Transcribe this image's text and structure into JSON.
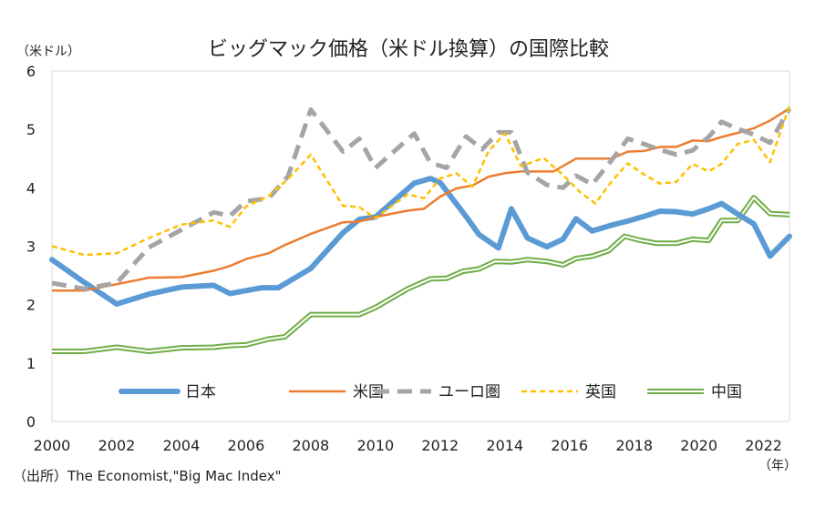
{
  "chart_data": {
    "type": "line",
    "title": "ビッグマック価格（米ドル換算）の国際比較",
    "ylabel": "（米ドル）",
    "xlabel": "（年）",
    "source": "（出所）The Economist,\"Big Mac Index\"",
    "ylim": [
      0,
      6
    ],
    "xlim": [
      2000,
      2022.8
    ],
    "yticks": [
      "0",
      "1",
      "2",
      "3",
      "4",
      "5",
      "6"
    ],
    "xticks": [
      "2000",
      "2002",
      "2004",
      "2006",
      "2008",
      "2010",
      "2012",
      "2014",
      "2016",
      "2018",
      "2020",
      "2022"
    ],
    "series": [
      {
        "name": "日本",
        "color": "#5B9BD5",
        "style": "thick",
        "points": [
          [
            2000,
            2.77
          ],
          [
            2001,
            2.38
          ],
          [
            2002,
            2.01
          ],
          [
            2003,
            2.18
          ],
          [
            2004,
            2.3
          ],
          [
            2005,
            2.33
          ],
          [
            2005.5,
            2.19
          ],
          [
            2006.5,
            2.29
          ],
          [
            2007,
            2.29
          ],
          [
            2008,
            2.62
          ],
          [
            2009,
            3.23
          ],
          [
            2009.5,
            3.46
          ],
          [
            2010,
            3.5
          ],
          [
            2011.2,
            4.08
          ],
          [
            2011.7,
            4.16
          ],
          [
            2012,
            4.09
          ],
          [
            2012.8,
            3.51
          ],
          [
            2013.2,
            3.2
          ],
          [
            2013.8,
            2.97
          ],
          [
            2014.2,
            3.64
          ],
          [
            2014.7,
            3.14
          ],
          [
            2015.3,
            2.99
          ],
          [
            2015.8,
            3.12
          ],
          [
            2016.2,
            3.47
          ],
          [
            2016.7,
            3.26
          ],
          [
            2017.3,
            3.36
          ],
          [
            2017.8,
            3.43
          ],
          [
            2018.3,
            3.51
          ],
          [
            2018.8,
            3.6
          ],
          [
            2019.3,
            3.59
          ],
          [
            2019.8,
            3.55
          ],
          [
            2020.3,
            3.64
          ],
          [
            2020.7,
            3.73
          ],
          [
            2021.2,
            3.55
          ],
          [
            2021.7,
            3.38
          ],
          [
            2022.2,
            2.83
          ],
          [
            2022.8,
            3.17
          ]
        ]
      },
      {
        "name": "米国",
        "color": "#ED7D31",
        "style": "solid",
        "points": [
          [
            2000,
            2.24
          ],
          [
            2001,
            2.24
          ],
          [
            2002,
            2.35
          ],
          [
            2003,
            2.46
          ],
          [
            2004,
            2.47
          ],
          [
            2005,
            2.58
          ],
          [
            2005.5,
            2.66
          ],
          [
            2006,
            2.78
          ],
          [
            2006.7,
            2.88
          ],
          [
            2007.2,
            3.02
          ],
          [
            2008,
            3.21
          ],
          [
            2009,
            3.41
          ],
          [
            2009.5,
            3.42
          ],
          [
            2010,
            3.5
          ],
          [
            2011,
            3.61
          ],
          [
            2011.5,
            3.64
          ],
          [
            2012,
            3.85
          ],
          [
            2012.5,
            3.99
          ],
          [
            2013,
            4.04
          ],
          [
            2013.5,
            4.19
          ],
          [
            2014,
            4.25
          ],
          [
            2014.5,
            4.28
          ],
          [
            2015,
            4.28
          ],
          [
            2015.5,
            4.28
          ],
          [
            2016.2,
            4.5
          ],
          [
            2016.7,
            4.5
          ],
          [
            2017.3,
            4.5
          ],
          [
            2017.8,
            4.62
          ],
          [
            2018.3,
            4.63
          ],
          [
            2018.8,
            4.7
          ],
          [
            2019.3,
            4.7
          ],
          [
            2019.8,
            4.81
          ],
          [
            2020.3,
            4.8
          ],
          [
            2020.7,
            4.87
          ],
          [
            2021.2,
            4.94
          ],
          [
            2021.7,
            5.02
          ],
          [
            2022.2,
            5.15
          ],
          [
            2022.8,
            5.36
          ]
        ]
      },
      {
        "name": "ユーロ圏",
        "color": "#A5A5A5",
        "style": "dashed",
        "points": [
          [
            2000,
            2.37
          ],
          [
            2001,
            2.27
          ],
          [
            2002,
            2.37
          ],
          [
            2003,
            2.98
          ],
          [
            2004,
            3.28
          ],
          [
            2005,
            3.58
          ],
          [
            2005.5,
            3.52
          ],
          [
            2006,
            3.77
          ],
          [
            2006.7,
            3.82
          ],
          [
            2007.3,
            4.2
          ],
          [
            2008,
            5.34
          ],
          [
            2009,
            4.62
          ],
          [
            2009.5,
            4.84
          ],
          [
            2010,
            4.34
          ],
          [
            2011.2,
            4.93
          ],
          [
            2011.7,
            4.43
          ],
          [
            2012.2,
            4.34
          ],
          [
            2012.8,
            4.88
          ],
          [
            2013.3,
            4.66
          ],
          [
            2013.8,
            4.95
          ],
          [
            2014.2,
            4.95
          ],
          [
            2014.7,
            4.26
          ],
          [
            2015.3,
            4.05
          ],
          [
            2015.8,
            4.0
          ],
          [
            2016.2,
            4.21
          ],
          [
            2016.7,
            4.06
          ],
          [
            2017.3,
            4.47
          ],
          [
            2017.8,
            4.84
          ],
          [
            2018.3,
            4.75
          ],
          [
            2018.8,
            4.65
          ],
          [
            2019.3,
            4.57
          ],
          [
            2019.8,
            4.64
          ],
          [
            2020.3,
            4.87
          ],
          [
            2020.7,
            5.13
          ],
          [
            2021.2,
            5.01
          ],
          [
            2021.7,
            4.91
          ],
          [
            2022.2,
            4.77
          ],
          [
            2022.8,
            5.36
          ]
        ]
      },
      {
        "name": "英国",
        "color": "#FFC000",
        "style": "dotted",
        "points": [
          [
            2000,
            3.0
          ],
          [
            2001,
            2.85
          ],
          [
            2002,
            2.88
          ],
          [
            2003,
            3.14
          ],
          [
            2004,
            3.37
          ],
          [
            2005,
            3.44
          ],
          [
            2005.5,
            3.33
          ],
          [
            2006,
            3.68
          ],
          [
            2006.7,
            3.86
          ],
          [
            2007.3,
            4.15
          ],
          [
            2008,
            4.57
          ],
          [
            2009,
            3.69
          ],
          [
            2009.5,
            3.67
          ],
          [
            2010,
            3.48
          ],
          [
            2011,
            3.89
          ],
          [
            2011.5,
            3.82
          ],
          [
            2012,
            4.16
          ],
          [
            2012.5,
            4.25
          ],
          [
            2013,
            4.02
          ],
          [
            2013.5,
            4.63
          ],
          [
            2014,
            4.93
          ],
          [
            2014.5,
            4.37
          ],
          [
            2015.2,
            4.51
          ],
          [
            2015.8,
            4.22
          ],
          [
            2016.3,
            3.94
          ],
          [
            2016.8,
            3.73
          ],
          [
            2017.3,
            4.11
          ],
          [
            2017.8,
            4.42
          ],
          [
            2018.3,
            4.23
          ],
          [
            2018.8,
            4.07
          ],
          [
            2019.3,
            4.1
          ],
          [
            2019.8,
            4.41
          ],
          [
            2020.3,
            4.28
          ],
          [
            2020.7,
            4.41
          ],
          [
            2021.2,
            4.75
          ],
          [
            2021.7,
            4.82
          ],
          [
            2022.2,
            4.44
          ],
          [
            2022.8,
            5.4
          ]
        ]
      },
      {
        "name": "中国",
        "color": "#70AD47",
        "style": "double",
        "points": [
          [
            2000,
            1.2
          ],
          [
            2001,
            1.2
          ],
          [
            2002,
            1.27
          ],
          [
            2003,
            1.2
          ],
          [
            2004,
            1.26
          ],
          [
            2005,
            1.27
          ],
          [
            2005.5,
            1.3
          ],
          [
            2006,
            1.31
          ],
          [
            2006.7,
            1.41
          ],
          [
            2007.2,
            1.45
          ],
          [
            2008,
            1.83
          ],
          [
            2009,
            1.83
          ],
          [
            2009.5,
            1.83
          ],
          [
            2010,
            1.95
          ],
          [
            2011,
            2.27
          ],
          [
            2011.7,
            2.44
          ],
          [
            2012.2,
            2.45
          ],
          [
            2012.7,
            2.57
          ],
          [
            2013.2,
            2.61
          ],
          [
            2013.7,
            2.74
          ],
          [
            2014.2,
            2.73
          ],
          [
            2014.7,
            2.77
          ],
          [
            2015.3,
            2.74
          ],
          [
            2015.8,
            2.68
          ],
          [
            2016.2,
            2.79
          ],
          [
            2016.7,
            2.83
          ],
          [
            2017.2,
            2.92
          ],
          [
            2017.7,
            3.17
          ],
          [
            2018.2,
            3.1
          ],
          [
            2018.7,
            3.05
          ],
          [
            2019.3,
            3.05
          ],
          [
            2019.8,
            3.12
          ],
          [
            2020.3,
            3.1
          ],
          [
            2020.7,
            3.44
          ],
          [
            2021.2,
            3.44
          ],
          [
            2021.7,
            3.83
          ],
          [
            2022.2,
            3.56
          ],
          [
            2022.8,
            3.54
          ]
        ]
      }
    ]
  }
}
